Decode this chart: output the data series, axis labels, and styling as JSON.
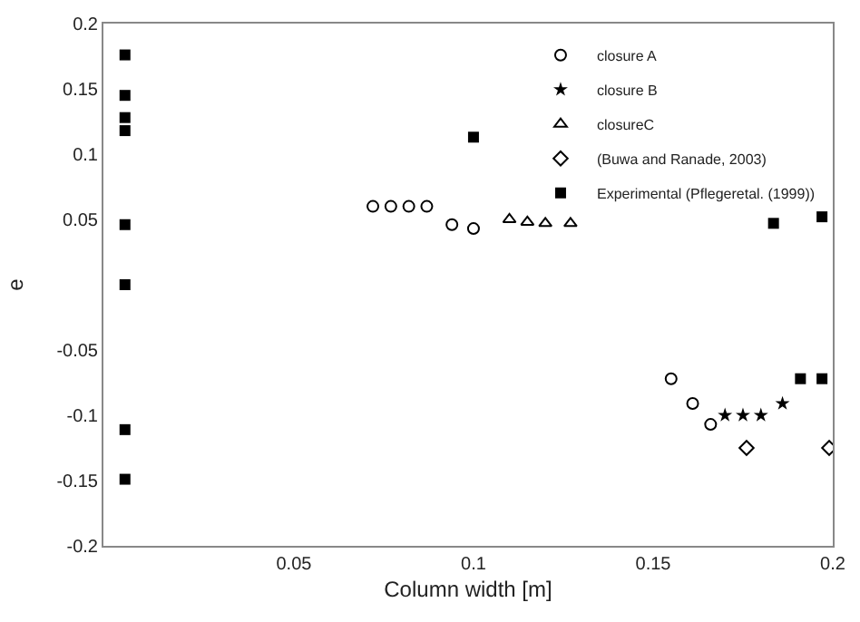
{
  "chart_data": {
    "type": "scatter",
    "xlabel": "Column width [m]",
    "ylabel": "e",
    "xlim": [
      -0.003,
      0.2
    ],
    "xticks": [
      0.05,
      0.1,
      0.15,
      0.2
    ],
    "ylim": [
      -0.2,
      0.2
    ],
    "yticks": [
      -0.2,
      -0.15,
      -0.1,
      -0.05,
      0.05,
      0.1,
      0.15,
      0.2
    ],
    "legend": "top right",
    "series": [
      {
        "name": "closure A",
        "color": "#000000",
        "marker": "circle",
        "x": [
          0.072,
          0.077,
          0.082,
          0.087,
          0.094,
          0.1,
          0.155,
          0.161,
          0.166
        ],
        "values": [
          0.06,
          0.06,
          0.06,
          0.06,
          0.046,
          0.043,
          -0.072,
          -0.091,
          -0.107
        ]
      },
      {
        "name": "closure B",
        "color": "#000000",
        "marker": "star",
        "x": [
          0.17,
          0.175,
          0.18,
          0.186
        ],
        "values": [
          -0.1,
          -0.1,
          -0.1,
          -0.091
        ]
      },
      {
        "name": "closureC",
        "color": "#000000",
        "marker": "triangle",
        "x": [
          0.11,
          0.115,
          0.12,
          0.127
        ],
        "values": [
          0.05,
          0.048,
          0.047,
          0.047
        ]
      },
      {
        "name": "(Buwa and Ranade, 2003)",
        "color": "#000000",
        "marker": "diamond",
        "x": [
          0.176,
          0.199
        ],
        "values": [
          -0.125,
          -0.125
        ]
      },
      {
        "name": "Experimental (Pflegeretal. (1999))",
        "color": "#000000",
        "marker": "square",
        "x": [
          0.003,
          0.003,
          0.003,
          0.003,
          0.003,
          0.003,
          0.003,
          0.003,
          0.1,
          0.1835,
          0.197,
          0.191,
          0.197
        ],
        "values": [
          0.176,
          0.145,
          0.128,
          0.118,
          0.046,
          0.0,
          -0.111,
          -0.149,
          0.113,
          0.047,
          0.052,
          -0.072,
          -0.072
        ]
      }
    ]
  }
}
